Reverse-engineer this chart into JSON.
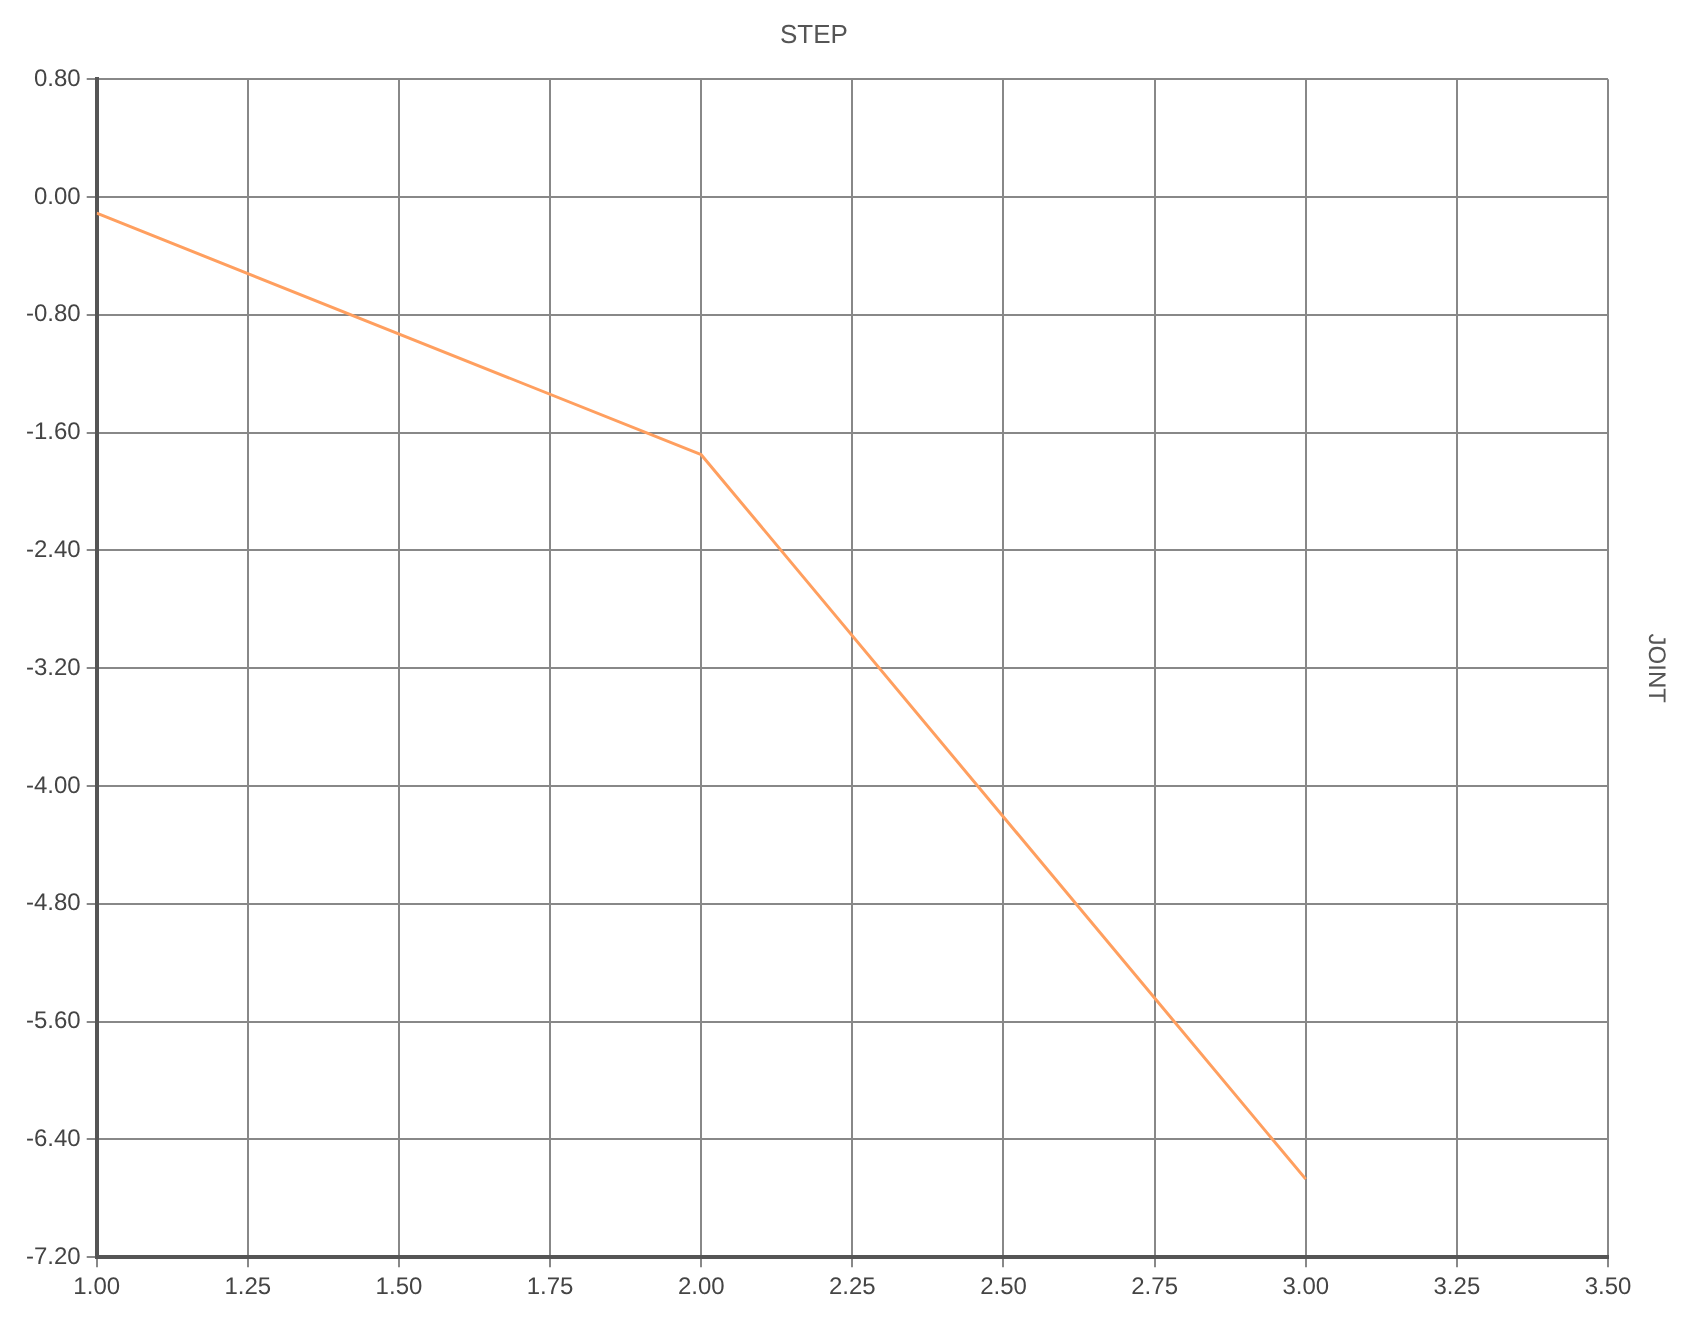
{
  "chart_data": {
    "type": "line",
    "title": "STEP",
    "y2label": "JOINT",
    "x": [
      1,
      2,
      3
    ],
    "series": [
      {
        "color": "#ff9f5f",
        "values": [
          -0.11,
          -1.75,
          -6.67
        ]
      }
    ],
    "xlim": [
      1,
      3.5
    ],
    "xticks": [
      {
        "value": 1,
        "label": "1.00"
      },
      {
        "value": 1.25,
        "label": "1.25"
      },
      {
        "value": 1.5,
        "label": "1.50"
      },
      {
        "value": 1.75,
        "label": "1.75"
      },
      {
        "value": 2,
        "label": "2.00"
      },
      {
        "value": 2.25,
        "label": "2.25"
      },
      {
        "value": 2.5,
        "label": "2.50"
      },
      {
        "value": 2.75,
        "label": "2.75"
      },
      {
        "value": 3,
        "label": "3.00"
      },
      {
        "value": 3.25,
        "label": "3.25"
      },
      {
        "value": 3.5,
        "label": "3.50"
      }
    ],
    "ylim": [
      -7.2,
      0.8
    ],
    "yticks": [
      {
        "value": -7.2,
        "label": "-7.20"
      },
      {
        "value": -6.4,
        "label": "-6.40"
      },
      {
        "value": -5.6,
        "label": "-5.60"
      },
      {
        "value": -4.8,
        "label": "-4.80"
      },
      {
        "value": -4,
        "label": "-4.00"
      },
      {
        "value": -3.2,
        "label": "-3.20"
      },
      {
        "value": -2.4,
        "label": "-2.40"
      },
      {
        "value": -1.6,
        "label": "-1.60"
      },
      {
        "value": -0.8,
        "label": "-0.80"
      },
      {
        "value": 0,
        "label": "0.00"
      },
      {
        "value": 0.8,
        "label": "0.80"
      }
    ],
    "grid": true,
    "legend": false,
    "marker": "none",
    "line_style": "solid"
  }
}
